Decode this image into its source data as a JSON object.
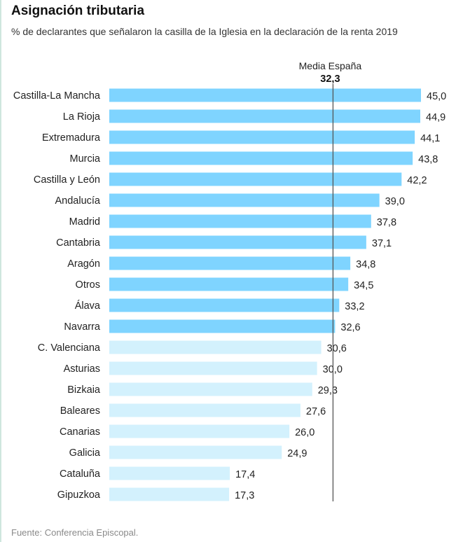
{
  "header": {
    "title": "Asignación tributaria",
    "subtitle": "% de declarantes que señalaron la casilla de la Iglesia en la declaración de la renta 2019"
  },
  "footer": {
    "source": "Fuente: Conferencia Episcopal."
  },
  "colors": {
    "above_average": "#7fd4ff",
    "below_average": "#d3f1fd",
    "reference_line": "#555555",
    "text": "#222222"
  },
  "chart_data": {
    "type": "bar",
    "orientation": "horizontal",
    "title": "Asignación tributaria",
    "subtitle": "% de declarantes que señalaron la casilla de la Iglesia en la declaración de la renta 2019",
    "categories": [
      "Castilla-La Mancha",
      "La Rioja",
      "Extremadura",
      "Murcia",
      "Castilla y León",
      "Andalucía",
      "Madrid",
      "Cantabria",
      "Aragón",
      "Otros",
      "Álava",
      "Navarra",
      "C. Valenciana",
      "Asturias",
      "Bizkaia",
      "Baleares",
      "Canarias",
      "Galicia",
      "Cataluña",
      "Gipuzkoa"
    ],
    "values": [
      45.0,
      44.9,
      44.1,
      43.8,
      42.2,
      39.0,
      37.8,
      37.1,
      34.8,
      34.5,
      33.2,
      32.6,
      30.6,
      30.0,
      29.3,
      27.6,
      26.0,
      24.9,
      17.4,
      17.3
    ],
    "value_labels": [
      "45,0",
      "44,9",
      "44,1",
      "43,8",
      "42,2",
      "39,0",
      "37,8",
      "37,1",
      "34,8",
      "34,5",
      "33,2",
      "32,6",
      "30,6",
      "30,0",
      "29,3",
      "27,6",
      "26,0",
      "24,9",
      "17,4",
      "17,3"
    ],
    "reference": {
      "label": "Media España",
      "value": 32.3,
      "value_label": "32,3"
    },
    "xlim": [
      0,
      45
    ],
    "grid": false,
    "legend": "none"
  }
}
